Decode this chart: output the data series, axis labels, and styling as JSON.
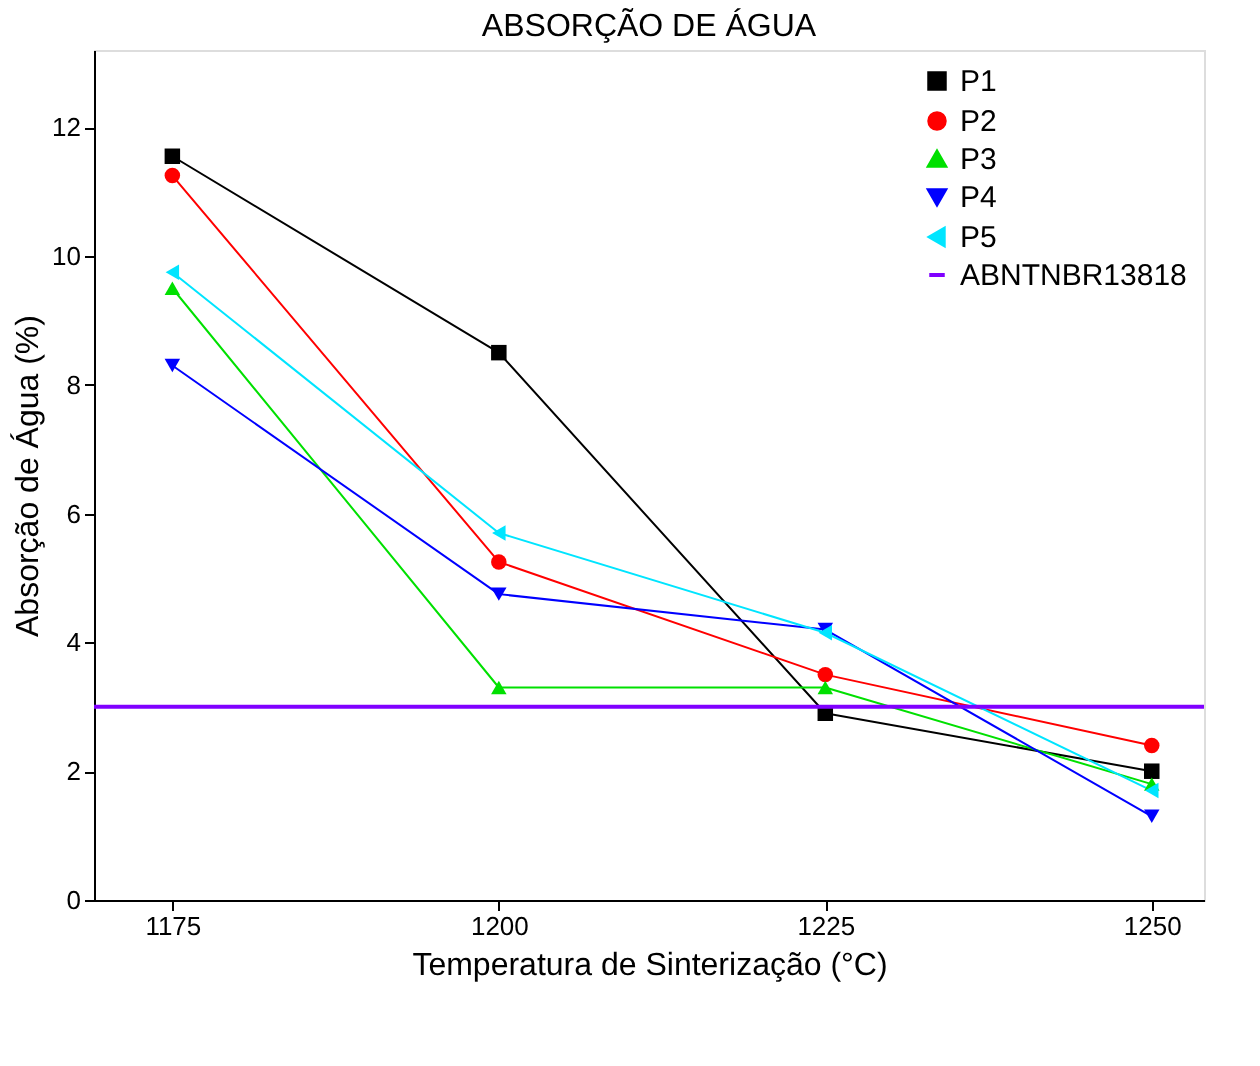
{
  "chart_data": {
    "type": "line",
    "title": "ABSORÇÃO DE ÁGUA",
    "xlabel": "Temperatura de Sinterização (°C)",
    "ylabel": "Absorção de Água (%)",
    "x": [
      1175,
      1200,
      1225,
      1250
    ],
    "series": [
      {
        "name": "P1",
        "color": "#000000",
        "marker": "square",
        "values": [
          11.55,
          8.5,
          2.9,
          2.0
        ]
      },
      {
        "name": "P2",
        "color": "#ff0000",
        "marker": "circle",
        "values": [
          11.25,
          5.25,
          3.5,
          2.4
        ]
      },
      {
        "name": "P3",
        "color": "#00e000",
        "marker": "triangle",
        "values": [
          9.5,
          3.3,
          3.3,
          1.8
        ]
      },
      {
        "name": "P4",
        "color": "#0000ff",
        "marker": "triangle-down",
        "values": [
          8.3,
          4.75,
          4.2,
          1.3
        ]
      },
      {
        "name": "P5",
        "color": "#00e5ff",
        "marker": "triangle-left",
        "values": [
          9.75,
          5.7,
          4.15,
          1.7
        ]
      }
    ],
    "ref_lines": [
      {
        "axis": "y",
        "value": 3.0,
        "label": "ABNTNBR13818",
        "color": "#8000ff"
      }
    ],
    "xlim": [
      1169,
      1254
    ],
    "xticks": [
      1175,
      1200,
      1225,
      1250
    ],
    "ylim": [
      0,
      13.2
    ],
    "yticks": [
      0,
      2,
      4,
      6,
      8,
      10,
      12
    ],
    "grid": false,
    "legend": "top right"
  }
}
